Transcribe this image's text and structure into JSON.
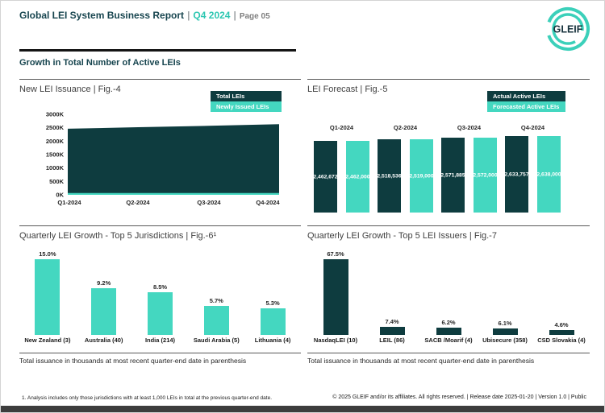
{
  "header": {
    "title": "Global LEI System Business Report",
    "divider": "|",
    "period": "Q4 2024",
    "page_label": "Page 05"
  },
  "logo": {
    "text": "GLEIF"
  },
  "section_title": "Growth in Total Number of Active LEIs",
  "colors": {
    "dark_teal": "#0e3c3f",
    "turquoise": "#44d7c0",
    "title_teal": "#17454f",
    "accent_teal": "#2fc7b2",
    "text_dark": "#262626",
    "text_gray": "#7f7f7f"
  },
  "panels": {
    "fig4": {
      "title": "New LEI Issuance | Fig.-4",
      "legend": [
        {
          "label": "Total LEIs",
          "color": "#0e3c3f"
        },
        {
          "label": "Newly Issued LEIs",
          "color": "#44d7c0"
        }
      ]
    },
    "fig5": {
      "title": "LEI Forecast | Fig.-5",
      "legend": [
        {
          "label": "Actual Active LEIs",
          "color": "#0e3c3f"
        },
        {
          "label": "Forecasted Active LEIs",
          "color": "#44d7c0"
        }
      ]
    },
    "fig6": {
      "title": "Quarterly LEI Growth - Top 5 Jurisdictions | Fig.-6¹"
    },
    "fig7": {
      "title": "Quarterly LEI Growth - Top 5 LEI Issuers | Fig.-7"
    },
    "bottom_note": "Total issuance in thousands at most recent quarter-end date in parenthesis"
  },
  "footer": {
    "footnote": "1. Analysis includes only those jurisdictions with at least 1,000 LEIs in total at the previous quarter-end date.",
    "copyright": "© 2025 GLEIF and/or its affiliates. All rights reserved. | Release date 2025-01-20 | Version 1.0 | Public"
  },
  "chart_data": [
    {
      "id": "fig4",
      "type": "area",
      "title": "New LEI Issuance | Fig.-4",
      "x": [
        "Q1-2024",
        "Q2-2024",
        "Q3-2024",
        "Q4-2024"
      ],
      "series": [
        {
          "name": "Total LEIs",
          "color": "#0e3c3f",
          "values": [
            2462672,
            2518536,
            2571885,
            2633757
          ]
        },
        {
          "name": "Newly Issued LEIs",
          "color": "#44d7c0",
          "values": [
            63000,
            68000,
            65000,
            70000
          ]
        }
      ],
      "ylabel_ticks": [
        "0K",
        "500K",
        "1000K",
        "1500K",
        "2000K",
        "2500K",
        "3000K"
      ],
      "ylim": [
        0,
        3000000
      ],
      "grid": false,
      "legend_position": "top-right"
    },
    {
      "id": "fig5",
      "type": "bar",
      "title": "LEI Forecast | Fig.-5",
      "categories": [
        "Q1-2024",
        "Q2-2024",
        "Q3-2024",
        "Q4-2024"
      ],
      "series": [
        {
          "name": "Actual Active LEIs",
          "color": "#0e3c3f",
          "values": [
            2462672,
            2518536,
            2571885,
            2633757
          ]
        },
        {
          "name": "Forecasted Active LEIs",
          "color": "#44d7c0",
          "values": [
            2462000,
            2519000,
            2572000,
            2638000
          ]
        }
      ],
      "data_labels": [
        "2,462,672",
        "2,462,000",
        "2,518,536",
        "2,519,000",
        "2,571,885",
        "2,572,000",
        "2,633,757",
        "2,638,000"
      ],
      "ylim": [
        0,
        2638000
      ],
      "legend_position": "top-right"
    },
    {
      "id": "fig6",
      "type": "bar",
      "title": "Quarterly LEI Growth - Top 5 Jurisdictions | Fig.-6¹",
      "categories": [
        "New Zealand (3)",
        "Australia (40)",
        "India (214)",
        "Saudi Arabia (5)",
        "Lithuania (4)"
      ],
      "values": [
        15.0,
        9.2,
        8.5,
        5.7,
        5.3
      ],
      "value_labels": [
        "15.0%",
        "9.2%",
        "8.5%",
        "5.7%",
        "5.3%"
      ],
      "bar_color": "#44d7c0",
      "ylim": [
        0,
        15
      ]
    },
    {
      "id": "fig7",
      "type": "bar",
      "title": "Quarterly LEI Growth - Top 5 LEI Issuers | Fig.-7",
      "categories": [
        "NasdaqLEI (10)",
        "LEIL (86)",
        "SACB /Moarif (4)",
        "Ubisecure (358)",
        "CSD Slovakia (4)"
      ],
      "values": [
        67.5,
        7.4,
        6.2,
        6.1,
        4.6
      ],
      "value_labels": [
        "67.5%",
        "7.4%",
        "6.2%",
        "6.1%",
        "4.6%"
      ],
      "bar_color": "#0e3c3f",
      "ylim": [
        0,
        67.5
      ]
    }
  ]
}
